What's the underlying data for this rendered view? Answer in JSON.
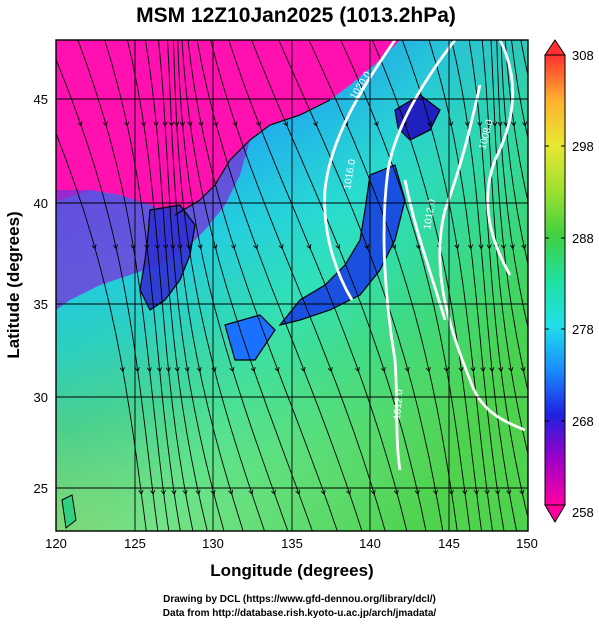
{
  "title": "MSM 12Z10Jan2025 (1013.2hPa)",
  "xlabel": "Longitude (degrees)",
  "ylabel": "Latitude  (degrees)",
  "x_ticks": [
    "120",
    "125",
    "130",
    "135",
    "140",
    "145",
    "150"
  ],
  "y_ticks": [
    "25",
    "30",
    "35",
    "40",
    "45"
  ],
  "colorbar": {
    "ticks": [
      "308",
      "298",
      "288",
      "278",
      "268",
      "258"
    ],
    "min": 258,
    "max": 308,
    "colors": [
      "#ff00a0",
      "#a000c8",
      "#2020e0",
      "#1a8cff",
      "#20e0e8",
      "#20e0a0",
      "#40d040",
      "#a0e030",
      "#e8e830",
      "#ffb030",
      "#ff3030"
    ]
  },
  "contour_labels": [
    "1020.0",
    "1016.0",
    "1012.0",
    "1008.0",
    "1012.0"
  ],
  "credits": {
    "line1": "Drawing by DCL (https://www.gfd-dennou.org/library/dcl/)",
    "line2": "Data from http://database.rish.kyoto-u.ac.jp/arch/jmadata/"
  }
}
